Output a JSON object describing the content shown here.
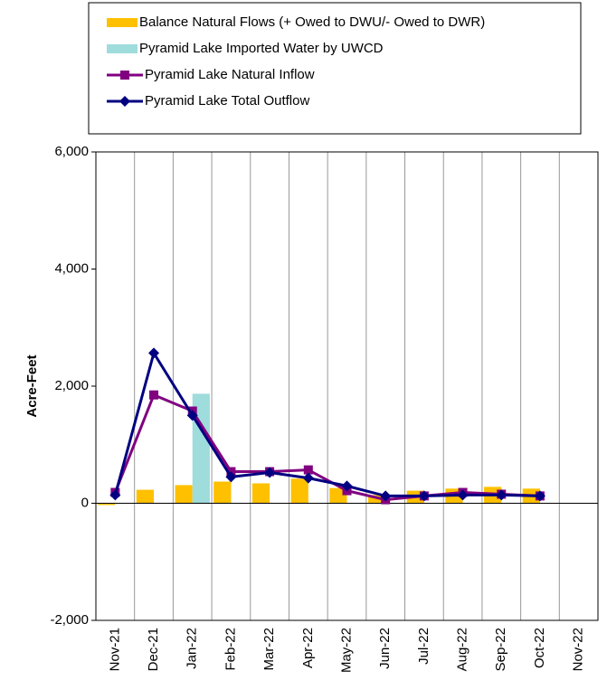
{
  "chart_data": {
    "type": "bar_line",
    "ylabel": "Acre-Feet",
    "categories": [
      "Nov-21",
      "Dec-21",
      "Jan-22",
      "Feb-22",
      "Mar-22",
      "Apr-22",
      "May-22",
      "Jun-22",
      "Jul-22",
      "Aug-22",
      "Sep-22",
      "Oct-22",
      "Nov-22"
    ],
    "series": [
      {
        "name": "Balance Natural Flows (+ Owed to DWU/- Owed to DWR)",
        "kind": "bar",
        "color": "#ffc000",
        "values": [
          -30,
          230,
          310,
          370,
          340,
          420,
          260,
          140,
          215,
          250,
          280,
          250,
          null
        ]
      },
      {
        "name": "Pyramid Lake Imported Water by UWCD",
        "kind": "bar",
        "color": "#9fdcdc",
        "values": [
          null,
          null,
          1870,
          null,
          null,
          null,
          null,
          null,
          null,
          null,
          null,
          null,
          null
        ]
      },
      {
        "name": "Pyramid Lake Natural Inflow",
        "kind": "line",
        "marker": "square",
        "color": "#800080",
        "values": [
          185,
          1850,
          1575,
          540,
          540,
          570,
          215,
          60,
          125,
          185,
          155,
          125,
          null
        ]
      },
      {
        "name": "Pyramid Lake Total Outflow",
        "kind": "line",
        "marker": "diamond",
        "color": "#000080",
        "values": [
          140,
          2565,
          1500,
          450,
          525,
          430,
          295,
          125,
          125,
          140,
          140,
          125,
          null
        ]
      }
    ],
    "ylim": [
      -2000,
      6000
    ],
    "yticks": [
      {
        "value": -2000,
        "label": "-2,000"
      },
      0,
      {
        "value": 2000,
        "label": "2,000"
      },
      {
        "value": 4000,
        "label": "4,000"
      },
      {
        "value": 6000,
        "label": "6,000"
      }
    ],
    "grid": true
  }
}
